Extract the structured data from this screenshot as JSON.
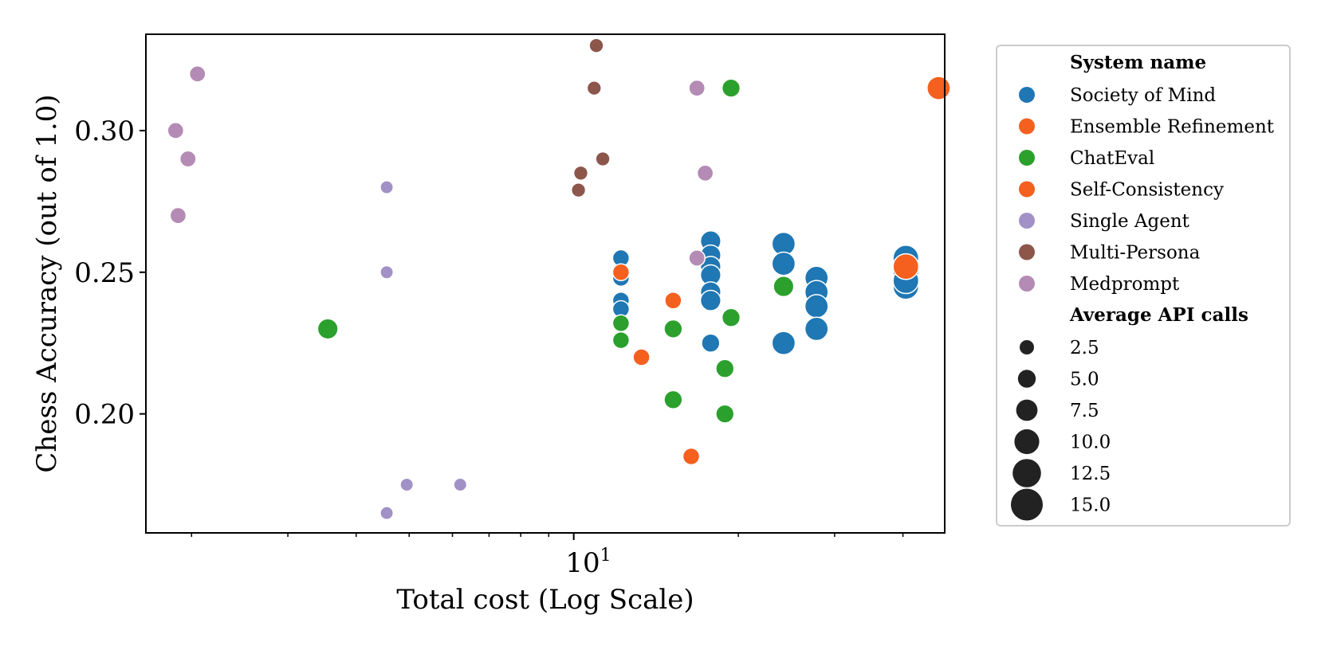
{
  "chart_data": {
    "type": "scatter",
    "xlabel": "Total cost (Log Scale)",
    "ylabel": "Chess Accuracy (out of 1.0)",
    "x_scale": "log",
    "xlim": [
      1.65,
      47.7
    ],
    "ylim": [
      0.158,
      0.334
    ],
    "x_tick_labels": [
      "10^1"
    ],
    "x_major_ticks": [
      10
    ],
    "x_minor_ticks": [
      2,
      3,
      4,
      5,
      6,
      7,
      8,
      9,
      20,
      30,
      40
    ],
    "y_ticks": [
      0.2,
      0.25,
      0.3
    ],
    "y_tick_labels": [
      "0.20",
      "0.25",
      "0.30"
    ],
    "grid": false,
    "legend": {
      "placement": "outside-right",
      "hue_title": "System name",
      "size_title": "Average API calls",
      "size_entries": [
        {
          "label": "2.5",
          "value": 2.5
        },
        {
          "label": "5.0",
          "value": 5.0
        },
        {
          "label": "7.5",
          "value": 7.5
        },
        {
          "label": "10.0",
          "value": 10.0
        },
        {
          "label": "12.5",
          "value": 12.5
        },
        {
          "label": "15.0",
          "value": 15.0
        }
      ]
    },
    "series": [
      {
        "name": "Society of Mind",
        "color": "#1f77b4",
        "points": [
          {
            "x": 12.2,
            "y": 0.255,
            "s": 3
          },
          {
            "x": 12.2,
            "y": 0.248,
            "s": 3
          },
          {
            "x": 12.2,
            "y": 0.24,
            "s": 3
          },
          {
            "x": 12.2,
            "y": 0.237,
            "s": 3
          },
          {
            "x": 17.8,
            "y": 0.261,
            "s": 6
          },
          {
            "x": 17.8,
            "y": 0.256,
            "s": 6
          },
          {
            "x": 17.8,
            "y": 0.252,
            "s": 6
          },
          {
            "x": 17.8,
            "y": 0.249,
            "s": 6
          },
          {
            "x": 17.8,
            "y": 0.243,
            "s": 6
          },
          {
            "x": 17.8,
            "y": 0.24,
            "s": 6
          },
          {
            "x": 17.8,
            "y": 0.225,
            "s": 4
          },
          {
            "x": 24.2,
            "y": 0.26,
            "s": 9
          },
          {
            "x": 24.2,
            "y": 0.253,
            "s": 9
          },
          {
            "x": 24.2,
            "y": 0.225,
            "s": 9
          },
          {
            "x": 27.8,
            "y": 0.248,
            "s": 9
          },
          {
            "x": 27.8,
            "y": 0.243,
            "s": 9
          },
          {
            "x": 27.8,
            "y": 0.238,
            "s": 9
          },
          {
            "x": 27.8,
            "y": 0.23,
            "s": 9
          },
          {
            "x": 40.5,
            "y": 0.255,
            "s": 12
          },
          {
            "x": 40.5,
            "y": 0.25,
            "s": 12
          },
          {
            "x": 40.5,
            "y": 0.245,
            "s": 12
          },
          {
            "x": 40.5,
            "y": 0.247,
            "s": 12
          }
        ]
      },
      {
        "name": "Ensemble Refinement",
        "color": "#f5601e",
        "points": [
          {
            "x": 12.2,
            "y": 0.25,
            "s": 3
          },
          {
            "x": 40.5,
            "y": 0.252,
            "s": 12
          },
          {
            "x": 46.5,
            "y": 0.315,
            "s": 9
          }
        ]
      },
      {
        "name": "ChatEval",
        "color": "#2ca02c",
        "points": [
          {
            "x": 3.55,
            "y": 0.23,
            "s": 6
          },
          {
            "x": 12.2,
            "y": 0.226,
            "s": 3
          },
          {
            "x": 12.2,
            "y": 0.232,
            "s": 3
          },
          {
            "x": 15.2,
            "y": 0.23,
            "s": 4
          },
          {
            "x": 15.2,
            "y": 0.205,
            "s": 4
          },
          {
            "x": 19.4,
            "y": 0.315,
            "s": 4
          },
          {
            "x": 19.4,
            "y": 0.234,
            "s": 4
          },
          {
            "x": 18.9,
            "y": 0.216,
            "s": 4
          },
          {
            "x": 18.9,
            "y": 0.2,
            "s": 4
          },
          {
            "x": 24.2,
            "y": 0.245,
            "s": 6
          }
        ]
      },
      {
        "name": "Self-Consistency",
        "color": "#f5601e",
        "points": [
          {
            "x": 15.2,
            "y": 0.24,
            "s": 3
          },
          {
            "x": 13.3,
            "y": 0.22,
            "s": 3
          },
          {
            "x": 16.4,
            "y": 0.185,
            "s": 3
          }
        ]
      },
      {
        "name": "Single Agent",
        "color": "#a291c6",
        "points": [
          {
            "x": 4.55,
            "y": 0.28,
            "s": 1
          },
          {
            "x": 4.55,
            "y": 0.25,
            "s": 1
          },
          {
            "x": 4.55,
            "y": 0.165,
            "s": 1
          },
          {
            "x": 4.95,
            "y": 0.175,
            "s": 1
          },
          {
            "x": 6.2,
            "y": 0.175,
            "s": 1
          }
        ]
      },
      {
        "name": "Multi-Persona",
        "color": "#8c564b",
        "points": [
          {
            "x": 11.0,
            "y": 0.33,
            "s": 1.5
          },
          {
            "x": 10.9,
            "y": 0.315,
            "s": 1.5
          },
          {
            "x": 11.3,
            "y": 0.29,
            "s": 1.5
          },
          {
            "x": 10.3,
            "y": 0.285,
            "s": 1.5
          },
          {
            "x": 10.2,
            "y": 0.279,
            "s": 1.5
          }
        ]
      },
      {
        "name": "Medprompt",
        "color": "#b48bb4",
        "points": [
          {
            "x": 2.05,
            "y": 0.32,
            "s": 2.5
          },
          {
            "x": 1.87,
            "y": 0.3,
            "s": 2.5
          },
          {
            "x": 1.97,
            "y": 0.29,
            "s": 2.5
          },
          {
            "x": 1.89,
            "y": 0.27,
            "s": 2.5
          },
          {
            "x": 16.8,
            "y": 0.315,
            "s": 2.5
          },
          {
            "x": 17.4,
            "y": 0.285,
            "s": 2.5
          },
          {
            "x": 16.8,
            "y": 0.255,
            "s": 2.5
          }
        ]
      }
    ]
  }
}
